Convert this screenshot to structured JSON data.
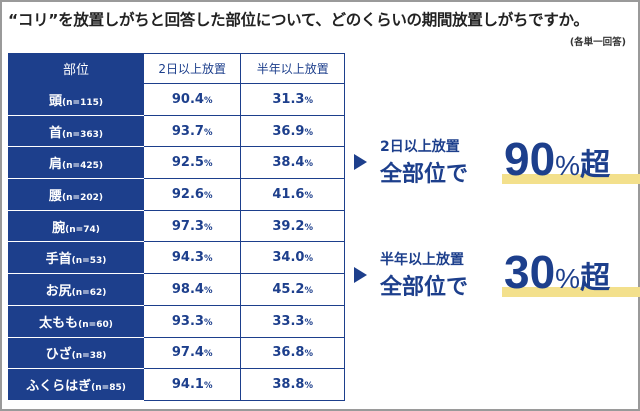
{
  "title": "“コリ”を放置しがちと回答した部位について、どのくらいの期間放置しがちですか。",
  "note": "(各単一回答)",
  "chart_data": {
    "type": "table",
    "columns": [
      "部位",
      "2日以上放置",
      "半年以上放置"
    ],
    "rows": [
      {
        "part": "頭",
        "n": "(n=115)",
        "d2": "90.4",
        "h": "31.3"
      },
      {
        "part": "首",
        "n": "(n=363)",
        "d2": "93.7",
        "h": "36.9"
      },
      {
        "part": "肩",
        "n": "(n=425)",
        "d2": "92.5",
        "h": "38.4"
      },
      {
        "part": "腰",
        "n": "(n=202)",
        "d2": "92.6",
        "h": "41.6"
      },
      {
        "part": "腕",
        "n": "(n=74)",
        "d2": "97.3",
        "h": "39.2"
      },
      {
        "part": "手首",
        "n": "(n=53)",
        "d2": "94.3",
        "h": "34.0"
      },
      {
        "part": "お尻",
        "n": "(n=62)",
        "d2": "98.4",
        "h": "45.2"
      },
      {
        "part": "太もも",
        "n": "(n=60)",
        "d2": "93.3",
        "h": "33.3"
      },
      {
        "part": "ひざ",
        "n": "(n=38)",
        "d2": "97.4",
        "h": "36.8"
      },
      {
        "part": "ふくらはぎ",
        "n": "(n=85)",
        "d2": "94.1",
        "h": "38.8"
      }
    ],
    "unit": "%"
  },
  "callouts": [
    {
      "sub": "2日以上放置",
      "main": "全部位で",
      "big": "90",
      "pct": "%",
      "chao": "超"
    },
    {
      "sub": "半年以上放置",
      "main": "全部位で",
      "big": "30",
      "pct": "%",
      "chao": "超"
    }
  ]
}
